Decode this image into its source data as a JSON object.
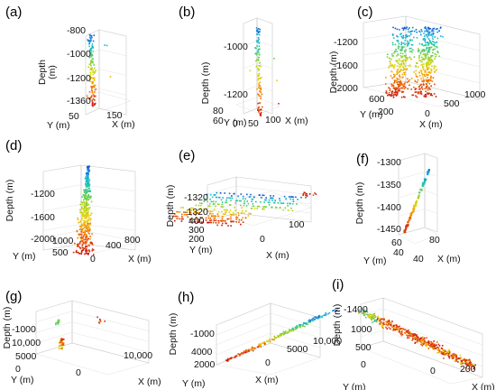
{
  "chart_data": [
    {
      "id": "a",
      "type": "scatter",
      "label": "(a)",
      "zticks": [
        "-800",
        "-1000",
        "-1200",
        "-1360"
      ],
      "yticks": [
        "50"
      ],
      "xticks": [
        "150"
      ],
      "xlabel": "X (m)",
      "ylabel": "Y (m)",
      "zlabel": "Depth",
      "zlabel_unit": "(m)",
      "cloud": "column",
      "n": 130
    },
    {
      "id": "b",
      "type": "scatter",
      "label": "(b)",
      "zticks": [
        "-1000",
        "-1200"
      ],
      "yticks": [
        "80",
        "60"
      ],
      "xticks": [
        "0",
        "50",
        "100"
      ],
      "xlabel": "X (m)",
      "ylabel": "Y (m)",
      "zlabel": "Depth (m)",
      "cloud": "column",
      "n": 110
    },
    {
      "id": "c",
      "type": "scatter",
      "label": "(c)",
      "zticks": [
        "-1200",
        "-1600",
        "-2000"
      ],
      "yticks": [
        "600",
        "200"
      ],
      "xticks": [
        "0",
        "500",
        "1000"
      ],
      "xlabel": "X (m)",
      "ylabel": "Y (m)",
      "zlabel": "Depth (m)",
      "cloud": "volume",
      "n": 650
    },
    {
      "id": "d",
      "type": "scatter",
      "label": "(d)",
      "zticks": [
        "-1200",
        "-1600",
        "-2000"
      ],
      "yticks": [
        "1000",
        "500"
      ],
      "xticks": [
        "0",
        "400",
        "800"
      ],
      "xlabel": "X (m)",
      "ylabel": "Y (m)",
      "zlabel": "Depth (m)",
      "cloud": "plume",
      "n": 420
    },
    {
      "id": "e",
      "type": "scatter",
      "label": "(e)",
      "zticks": [
        "-1320",
        "-1320"
      ],
      "yticks": [
        "400",
        "300",
        "200"
      ],
      "xticks": [
        "0",
        "100"
      ],
      "xlabel": "X (m)",
      "ylabel": "Y (m)",
      "zlabel": "Depth (m)",
      "cloud": "layers",
      "n": 380
    },
    {
      "id": "f",
      "type": "scatter",
      "label": "(f)",
      "zticks": [
        "-1300",
        "-1350",
        "-1400",
        "-1450"
      ],
      "yticks": [
        "60",
        "40"
      ],
      "xticks": [
        "40",
        "80"
      ],
      "xlabel": "X (m)",
      "ylabel": "Y (m)",
      "zlabel": "Depth (m)",
      "cloud": "line",
      "n": 60
    },
    {
      "id": "g",
      "type": "scatter",
      "label": "(g)",
      "zticks": [
        "-1000",
        "10,000"
      ],
      "yticks": [
        "5000",
        "0"
      ],
      "xticks": [
        "0",
        "10,000"
      ],
      "xlabel": "X (m)",
      "ylabel": "Y (m)",
      "zlabel": "Depth (m)",
      "cloud": "sparse",
      "n": 60
    },
    {
      "id": "h",
      "type": "scatter",
      "label": "(h)",
      "zticks": [
        "-1000"
      ],
      "yticks": [
        "4000",
        "2000"
      ],
      "xticks": [
        "0",
        "5000",
        "10,000"
      ],
      "xlabel": "X (m)",
      "ylabel": "Y (m)",
      "zlabel": "Depth (m)",
      "cloud": "diagonal",
      "n": 230
    },
    {
      "id": "i",
      "type": "scatter",
      "label": "(i)",
      "zticks": [
        "-1400"
      ],
      "yticks": [
        "1000",
        "500",
        "0"
      ],
      "xticks": [
        "0",
        "200"
      ],
      "xlabel": "X (m)",
      "ylabel": "Y (m)",
      "zlabel": "Depth (m)",
      "cloud": "band",
      "n": 480
    }
  ]
}
